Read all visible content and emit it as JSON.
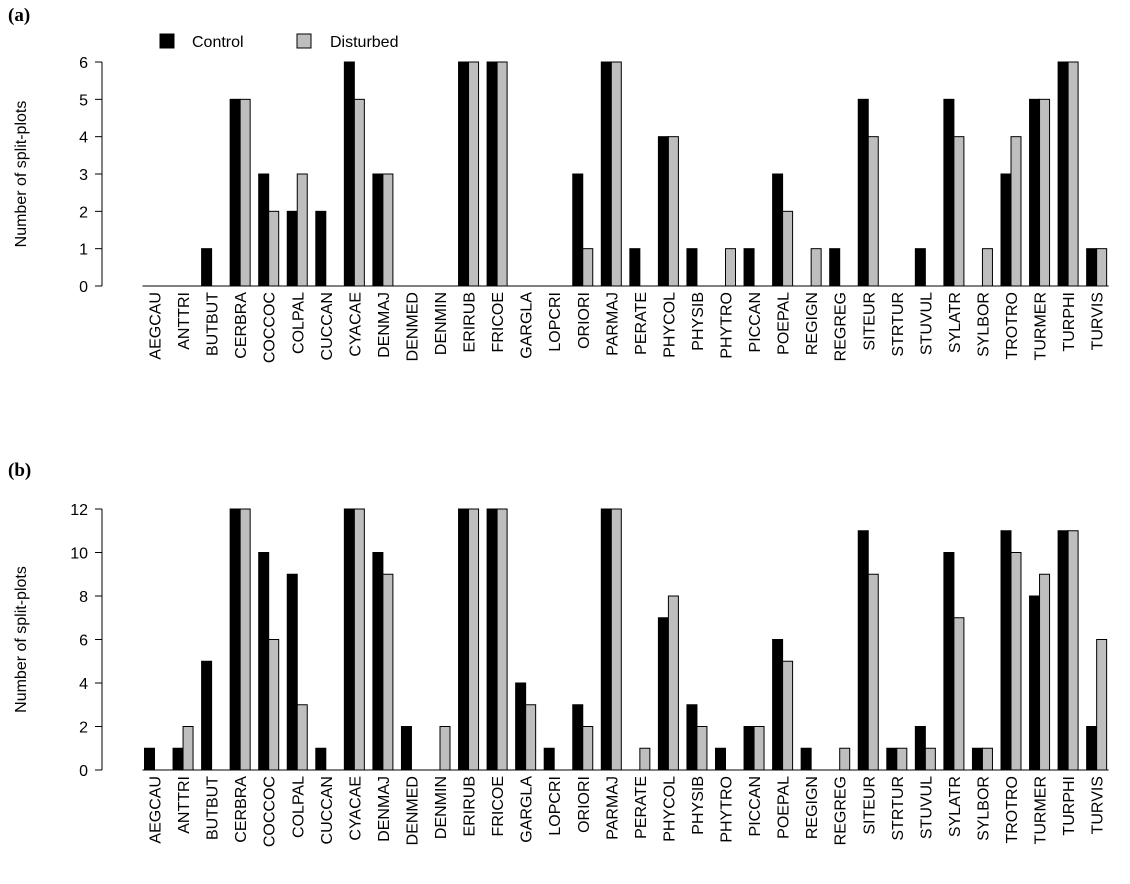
{
  "legend": [
    {
      "name": "Control",
      "color": "#000000"
    },
    {
      "name": "Disturbed",
      "color": "#bebebe"
    }
  ],
  "chart_data": [
    {
      "type": "bar",
      "panel_label": "(a)",
      "ylabel": "Number of split-plots",
      "ylim": [
        0,
        6
      ],
      "yticks": [
        "0",
        "1",
        "2",
        "3",
        "4",
        "5",
        "6"
      ],
      "categories": [
        "AEGCAU",
        "ANTTRI",
        "BUTBUT",
        "CERBRA",
        "COCCOC",
        "COLPAL",
        "CUCCAN",
        "CYACAE",
        "DENMAJ",
        "DENMED",
        "DENMIN",
        "ERIRUB",
        "FRICOE",
        "GARGLA",
        "LOPCRI",
        "ORIORI",
        "PARMAJ",
        "PERATE",
        "PHYCOL",
        "PHYSIB",
        "PHYTRO",
        "PICCAN",
        "POEPAL",
        "REGIGN",
        "REGREG",
        "SITEUR",
        "STRTUR",
        "STUVUL",
        "SYLATR",
        "SYLBOR",
        "TROTRO",
        "TURMER",
        "TURPHI",
        "TURVIS"
      ],
      "series": [
        {
          "name": "Control",
          "values": [
            0,
            0,
            1,
            5,
            3,
            2,
            2,
            6,
            3,
            0,
            0,
            6,
            6,
            0,
            0,
            3,
            6,
            1,
            4,
            1,
            0,
            1,
            3,
            0,
            1,
            5,
            0,
            1,
            5,
            0,
            3,
            5,
            6,
            1
          ]
        },
        {
          "name": "Disturbed",
          "values": [
            0,
            0,
            0,
            5,
            2,
            3,
            0,
            5,
            3,
            0,
            0,
            6,
            6,
            0,
            0,
            1,
            6,
            0,
            4,
            0,
            1,
            0,
            2,
            1,
            0,
            4,
            0,
            0,
            4,
            1,
            4,
            5,
            6,
            1
          ]
        }
      ],
      "legend_position": "top-left"
    },
    {
      "type": "bar",
      "panel_label": "(b)",
      "ylabel": "Number of split-plots",
      "ylim": [
        0,
        12
      ],
      "yticks": [
        "0",
        "2",
        "4",
        "6",
        "8",
        "10",
        "12"
      ],
      "categories": [
        "AEGCAU",
        "ANTTRI",
        "BUTBUT",
        "CERBRA",
        "COCCOC",
        "COLPAL",
        "CUCCAN",
        "CYACAE",
        "DENMAJ",
        "DENMED",
        "DENMIN",
        "ERIRUB",
        "FRICOE",
        "GARGLA",
        "LOPCRI",
        "ORIORI",
        "PARMAJ",
        "PERATE",
        "PHYCOL",
        "PHYSIB",
        "PHYTRO",
        "PICCAN",
        "POEPAL",
        "REGIGN",
        "REGREG",
        "SITEUR",
        "STRTUR",
        "STUVUL",
        "SYLATR",
        "SYLBOR",
        "TROTRO",
        "TURMER",
        "TURPHI",
        "TURVIS"
      ],
      "series": [
        {
          "name": "Control",
          "values": [
            1,
            1,
            5,
            12,
            10,
            9,
            1,
            12,
            10,
            2,
            0,
            12,
            12,
            4,
            1,
            3,
            12,
            0,
            7,
            3,
            1,
            2,
            6,
            1,
            0,
            11,
            1,
            2,
            10,
            1,
            11,
            8,
            11,
            2
          ]
        },
        {
          "name": "Disturbed",
          "values": [
            0,
            2,
            0,
            12,
            6,
            3,
            0,
            12,
            9,
            0,
            2,
            12,
            12,
            3,
            0,
            2,
            12,
            1,
            8,
            2,
            0,
            2,
            5,
            0,
            1,
            9,
            1,
            1,
            7,
            1,
            10,
            9,
            11,
            6
          ]
        }
      ]
    }
  ]
}
